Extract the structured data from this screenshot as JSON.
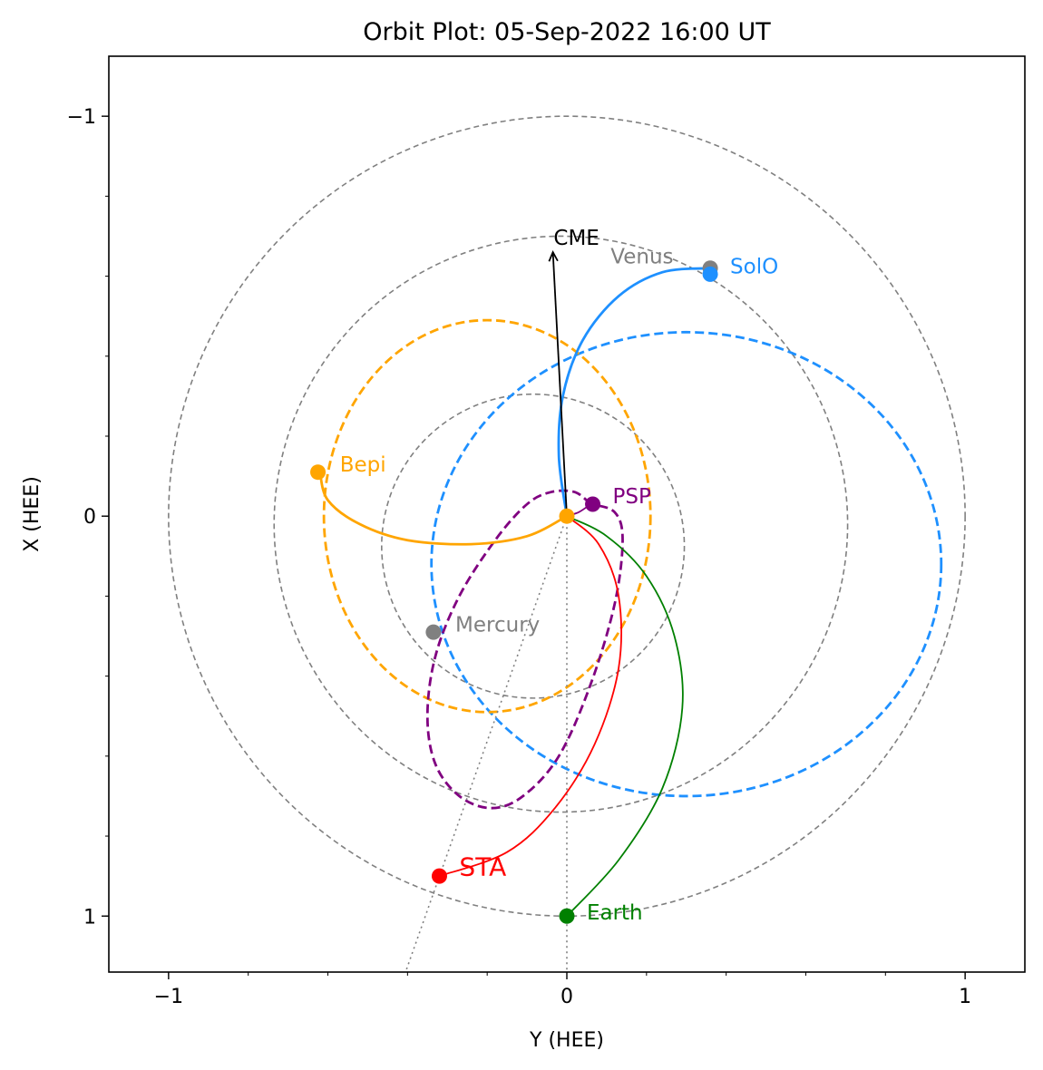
{
  "chart_data": {
    "type": "scatter",
    "title": "Orbit Plot: 05-Sep-2022 16:00 UT",
    "xlabel": "Y (HEE)",
    "ylabel": "X (HEE)",
    "xlim": [
      -1.15,
      1.15
    ],
    "ylim": [
      1.14,
      -1.15
    ],
    "x_ticks": [
      {
        "value": -1,
        "label": "−1"
      },
      {
        "value": 0,
        "label": "0"
      },
      {
        "value": 1,
        "label": "1"
      }
    ],
    "y_ticks": [
      {
        "value": -1,
        "label": "−1"
      },
      {
        "value": 0,
        "label": "0"
      },
      {
        "value": 1,
        "label": "1"
      }
    ],
    "grid": false,
    "orbits": [
      {
        "name": "earth-orbit",
        "type": "circle",
        "cx": 0.0,
        "cy": 0.0,
        "r": 1.0,
        "color": "#808080",
        "style": "dashed"
      },
      {
        "name": "venus-orbit",
        "type": "circle",
        "cx": -0.015,
        "cy": 0.02,
        "r": 0.72,
        "color": "#808080",
        "style": "dashed"
      },
      {
        "name": "mercury-orbit",
        "type": "circle",
        "cx": -0.085,
        "cy": 0.075,
        "r": 0.38,
        "color": "#808080",
        "style": "dashed"
      },
      {
        "name": "solo-orbit",
        "type": "ellipse",
        "cx": 0.3,
        "cy": 0.12,
        "rx": 0.64,
        "ry": 0.58,
        "color": "#1e90ff",
        "style": "dashed"
      },
      {
        "name": "bepi-orbit",
        "type": "ellipse",
        "cx": -0.2,
        "cy": 0.0,
        "rx": 0.41,
        "ry": 0.49,
        "color": "#ffa500",
        "style": "dashed"
      },
      {
        "name": "psp-orbit",
        "type": "path",
        "color": "#800080",
        "style": "dashed",
        "points": [
          [
            0.06,
            -0.03
          ],
          [
            0.02,
            -0.06
          ],
          [
            -0.04,
            -0.06
          ],
          [
            -0.1,
            -0.03
          ],
          [
            -0.18,
            0.06
          ],
          [
            -0.27,
            0.2
          ],
          [
            -0.33,
            0.35
          ],
          [
            -0.35,
            0.5
          ],
          [
            -0.33,
            0.62
          ],
          [
            -0.27,
            0.7
          ],
          [
            -0.19,
            0.73
          ],
          [
            -0.11,
            0.7
          ],
          [
            -0.02,
            0.6
          ],
          [
            0.06,
            0.42
          ],
          [
            0.12,
            0.22
          ],
          [
            0.14,
            0.06
          ],
          [
            0.12,
            -0.01
          ],
          [
            0.06,
            -0.03
          ]
        ]
      }
    ],
    "spirals": [
      {
        "name": "solo-spiral",
        "color": "#1e90ff",
        "points": [
          [
            0,
            0
          ],
          [
            -0.02,
            -0.15
          ],
          [
            -0.01,
            -0.3
          ],
          [
            0.04,
            -0.44
          ],
          [
            0.13,
            -0.55
          ],
          [
            0.24,
            -0.61
          ],
          [
            0.36,
            -0.62
          ]
        ]
      },
      {
        "name": "bepi-spiral",
        "color": "#ffa500",
        "points": [
          [
            0,
            0
          ],
          [
            -0.1,
            0.05
          ],
          [
            -0.24,
            0.07
          ],
          [
            -0.4,
            0.06
          ],
          [
            -0.52,
            0.02
          ],
          [
            -0.6,
            -0.04
          ],
          [
            -0.62,
            -0.11
          ]
        ]
      },
      {
        "name": "sta-spiral",
        "color": "#ff0000",
        "points": [
          [
            0,
            0
          ],
          [
            0.08,
            0.07
          ],
          [
            0.13,
            0.2
          ],
          [
            0.13,
            0.38
          ],
          [
            0.07,
            0.57
          ],
          [
            -0.03,
            0.73
          ],
          [
            -0.15,
            0.84
          ],
          [
            -0.32,
            0.9
          ]
        ]
      },
      {
        "name": "earth-spiral",
        "color": "#008000",
        "points": [
          [
            0,
            0
          ],
          [
            0.1,
            0.05
          ],
          [
            0.2,
            0.15
          ],
          [
            0.27,
            0.3
          ],
          [
            0.29,
            0.48
          ],
          [
            0.24,
            0.68
          ],
          [
            0.13,
            0.86
          ],
          [
            0.0,
            1.0
          ]
        ]
      },
      {
        "name": "psp-spiral",
        "color": "#800080",
        "points": [
          [
            0,
            0
          ],
          [
            0.03,
            -0.01
          ],
          [
            0.06,
            -0.03
          ]
        ]
      }
    ],
    "guide_lines": [
      {
        "name": "earth-line",
        "points": [
          [
            0,
            0
          ],
          [
            0,
            1.14
          ]
        ]
      },
      {
        "name": "sta-line",
        "points": [
          [
            0,
            0
          ],
          [
            -0.405,
            1.14
          ]
        ]
      }
    ],
    "arrow": {
      "label": "CME",
      "from": [
        0,
        0
      ],
      "to": [
        -0.035,
        -0.66
      ],
      "color": "#000000"
    },
    "bodies": [
      {
        "name": "Earth",
        "x": 0.0,
        "y": 1.0,
        "color": "#008000",
        "label_dx": 0.05,
        "label_dy": -0.01
      },
      {
        "name": "STA",
        "x": -0.32,
        "y": 0.9,
        "color": "#ff0000",
        "label_dx": 0.05,
        "label_dy": -0.02
      },
      {
        "name": "Venus",
        "x": 0.36,
        "y": -0.62,
        "color": "#808080",
        "label_dx": -0.25,
        "label_dy": -0.03
      },
      {
        "name": "SolO",
        "x": 0.36,
        "y": -0.605,
        "color": "#1e90ff",
        "label_dx": 0.05,
        "label_dy": -0.02
      },
      {
        "name": "Mercury",
        "x": -0.335,
        "y": 0.29,
        "color": "#808080",
        "label_dx": 0.055,
        "label_dy": -0.02
      },
      {
        "name": "PSP",
        "x": 0.065,
        "y": -0.03,
        "color": "#800080",
        "label_dx": 0.05,
        "label_dy": -0.02
      },
      {
        "name": "Bepi",
        "x": -0.625,
        "y": -0.11,
        "color": "#ffa500",
        "label_dx": 0.055,
        "label_dy": -0.02
      },
      {
        "name": "Sun-center",
        "x": 0.0,
        "y": 0.0,
        "color": "#ffa500",
        "label_dx": 0,
        "label_dy": 0
      }
    ]
  }
}
